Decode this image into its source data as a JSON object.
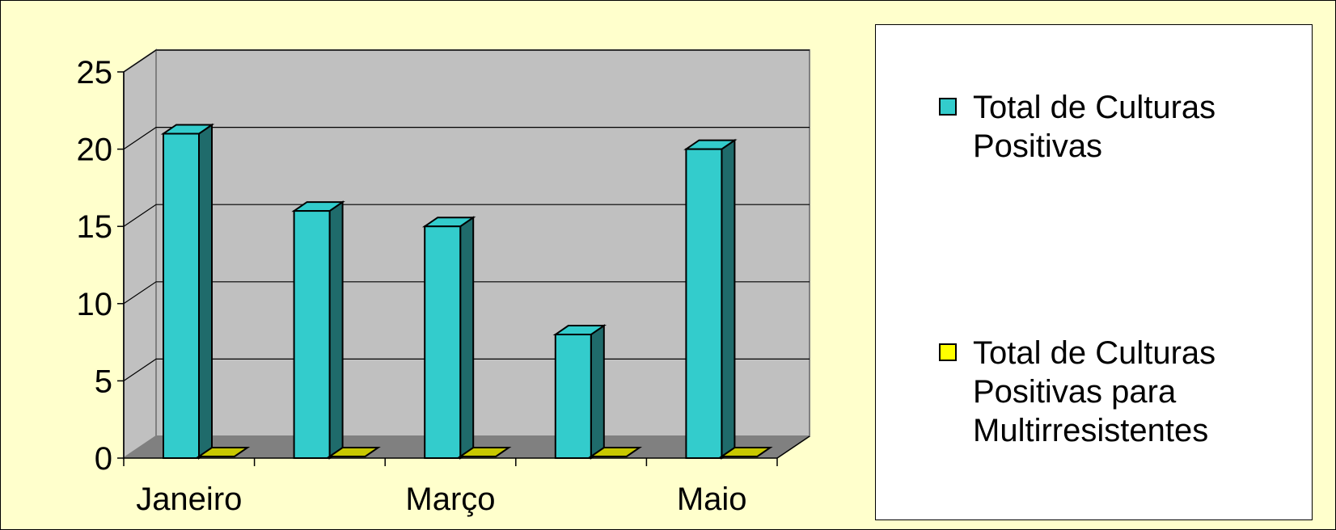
{
  "colors": {
    "background": "#ffffcc",
    "plot_wall": "#c0c0c0",
    "plot_floor": "#808080",
    "series1_front": "#33cccc",
    "series1_side": "#1f6b6b",
    "series2_front": "#ffff00",
    "series2_top": "#c8c800"
  },
  "legend": {
    "series1_label": "Total de Culturas Positivas",
    "series2_label": "Total de Culturas Positivas para Multirresistentes"
  },
  "chart_data": {
    "type": "bar",
    "categories": [
      "Janeiro",
      "",
      "Março",
      "",
      "Maio"
    ],
    "series": [
      {
        "name": "Total de Culturas Positivas",
        "values": [
          21,
          16,
          15,
          8,
          20
        ]
      },
      {
        "name": "Total de Culturas Positivas para Multirresistentes",
        "values": [
          0,
          0,
          0,
          0,
          0
        ]
      }
    ],
    "y_ticks": [
      0,
      5,
      10,
      15,
      20,
      25
    ],
    "ylim": [
      0,
      25
    ],
    "grid": true,
    "legend_position": "right"
  }
}
